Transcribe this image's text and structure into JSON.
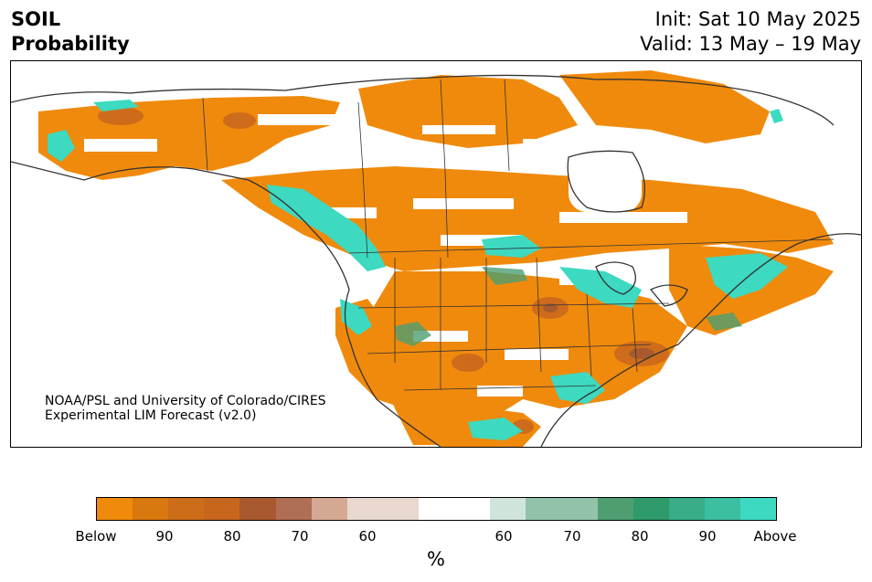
{
  "title": {
    "line1": "SOIL",
    "line2": "Probability"
  },
  "init": {
    "line1": "Init: Sat 10 May 2025",
    "line2": "Valid: 13 May – 19 May"
  },
  "credit": {
    "line1": "NOAA/PSL and University of Colorado/CIRES",
    "line2": "Experimental LIM Forecast (v2.0)"
  },
  "colors": {
    "below_strong": "#f08a0c",
    "below_mid": "#c8661e",
    "below_dark": "#a85a2e",
    "below_light": "#e8d8d0",
    "above_light": "#cfe4da",
    "above_mid": "#4e9e72",
    "above_strong": "#3dd9c0",
    "border": "#333333"
  },
  "colorbar": {
    "segments": [
      "#f08a0c",
      "#d9780f",
      "#cd6d1a",
      "#c8661e",
      "#a85a2e",
      "#b06e55",
      "#d5a894",
      "#e8d8d0",
      "#e8d8d0",
      "#ffffff",
      "#ffffff",
      "#cfe4da",
      "#92c2aa",
      "#92c2aa",
      "#4e9e72",
      "#2f9a6a",
      "#38ad88",
      "#3cbfa0",
      "#3dd9c0"
    ],
    "ticks": [
      "Below",
      "90",
      "80",
      "70",
      "60",
      "60",
      "70",
      "80",
      "90",
      "Above"
    ],
    "unit": "%"
  }
}
